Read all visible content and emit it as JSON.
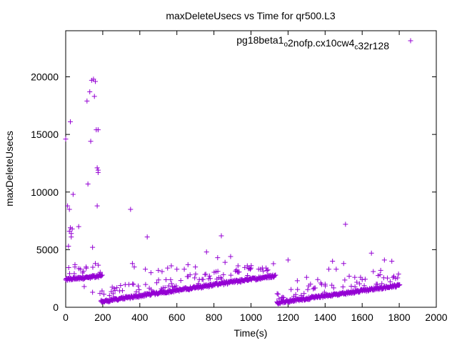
{
  "chart_data": {
    "type": "scatter",
    "title": "maxDeleteUsecs vs Time for qr500.L3",
    "xlabel": "Time(s)",
    "ylabel": "maxDeleteUsecs",
    "xlim": [
      0,
      2000
    ],
    "ylim": [
      0,
      24000
    ],
    "xticks": [
      0,
      200,
      400,
      600,
      800,
      1000,
      1200,
      1400,
      1600,
      1800,
      2000
    ],
    "yticks": [
      0,
      5000,
      10000,
      15000,
      20000
    ],
    "grid": false,
    "legend_position": "top-right",
    "marker": "+",
    "series": [
      {
        "name": "pg18beta1_o2nofp.cx10cw4_c32r128",
        "legend_parts": [
          {
            "text": "pg18beta1",
            "sub": false
          },
          {
            "text": "o",
            "sub": true
          },
          {
            "text": "2nofp.cx10cw4",
            "sub": false
          },
          {
            "text": "c",
            "sub": true
          },
          {
            "text": "32r128",
            "sub": false
          }
        ],
        "color": "#9400d3",
        "dense_segments": [
          {
            "x_start": 0,
            "x_end": 195,
            "y_start": 2400,
            "y_end": 2750
          },
          {
            "x_start": 190,
            "x_end": 1130,
            "y_start": 500,
            "y_end": 2750
          },
          {
            "x_start": 1140,
            "x_end": 1800,
            "y_start": 400,
            "y_end": 1900
          }
        ],
        "outliers": [
          [
            0,
            14600
          ],
          [
            10,
            8800
          ],
          [
            15,
            5300
          ],
          [
            20,
            6600
          ],
          [
            20,
            8500
          ],
          [
            25,
            6900
          ],
          [
            25,
            16100
          ],
          [
            30,
            6400
          ],
          [
            30,
            6100
          ],
          [
            35,
            6800
          ],
          [
            40,
            9800
          ],
          [
            50,
            3700
          ],
          [
            50,
            3500
          ],
          [
            70,
            7000
          ],
          [
            80,
            3300
          ],
          [
            100,
            1800
          ],
          [
            110,
            3500
          ],
          [
            115,
            17900
          ],
          [
            120,
            10700
          ],
          [
            130,
            18700
          ],
          [
            135,
            14400
          ],
          [
            140,
            19700
          ],
          [
            145,
            5200
          ],
          [
            150,
            19800
          ],
          [
            155,
            18300
          ],
          [
            160,
            19600
          ],
          [
            165,
            15400
          ],
          [
            170,
            12100
          ],
          [
            170,
            8800
          ],
          [
            175,
            11900
          ],
          [
            175,
            15400
          ],
          [
            175,
            11700
          ],
          [
            160,
            3800
          ],
          [
            145,
            1300
          ],
          [
            185,
            1200
          ],
          [
            350,
            8500
          ],
          [
            440,
            6100
          ],
          [
            360,
            3800
          ],
          [
            370,
            3500
          ],
          [
            430,
            3300
          ],
          [
            460,
            3000
          ],
          [
            500,
            3200
          ],
          [
            520,
            3100
          ],
          [
            550,
            3400
          ],
          [
            570,
            3600
          ],
          [
            600,
            3300
          ],
          [
            640,
            3300
          ],
          [
            660,
            3700
          ],
          [
            700,
            3500
          ],
          [
            760,
            4800
          ],
          [
            780,
            2500
          ],
          [
            820,
            4300
          ],
          [
            840,
            6200
          ],
          [
            860,
            3900
          ],
          [
            890,
            4400
          ],
          [
            930,
            3600
          ],
          [
            980,
            3600
          ],
          [
            1000,
            3400
          ],
          [
            1200,
            4100
          ],
          [
            1250,
            2300
          ],
          [
            1300,
            2600
          ],
          [
            1360,
            2400
          ],
          [
            1400,
            2000
          ],
          [
            1420,
            3300
          ],
          [
            1440,
            4000
          ],
          [
            1460,
            3300
          ],
          [
            1510,
            7200
          ],
          [
            1500,
            3800
          ],
          [
            1530,
            2700
          ],
          [
            1560,
            2600
          ],
          [
            1600,
            2400
          ],
          [
            1650,
            4700
          ],
          [
            1660,
            3100
          ],
          [
            1700,
            3200
          ],
          [
            1720,
            4100
          ],
          [
            1760,
            4000
          ],
          [
            1780,
            2500
          ]
        ]
      }
    ]
  }
}
